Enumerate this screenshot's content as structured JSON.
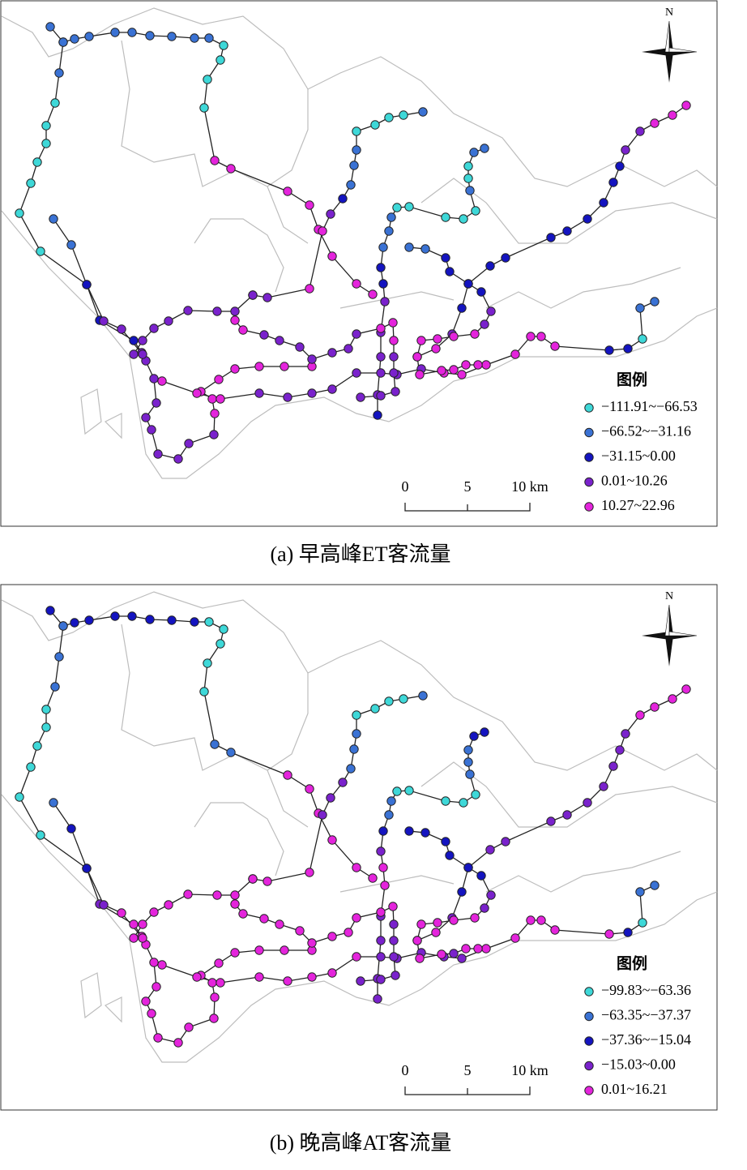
{
  "maps": [
    {
      "caption": "(a) 早高峰ET客流量",
      "north": "N",
      "scale": [
        "0",
        "5",
        "10 km"
      ],
      "legend": {
        "title": "图例",
        "classes": [
          {
            "label": "−111.91~−66.53",
            "color": "#3ed8d8"
          },
          {
            "label": "−66.52~−31.16",
            "color": "#3a72d4"
          },
          {
            "label": "−31.15~0.00",
            "color": "#1414c0"
          },
          {
            "label": "0.01~10.26",
            "color": "#7a22cc"
          },
          {
            "label": "10.27~22.96",
            "color": "#e424dc"
          }
        ]
      }
    },
    {
      "caption": "(b) 晚高峰AT客流量",
      "north": "N",
      "scale": [
        "0",
        "5",
        "10 km"
      ],
      "legend": {
        "title": "图例",
        "classes": [
          {
            "label": "−99.83~−63.36",
            "color": "#3ed8d8"
          },
          {
            "label": "−63.35~−37.37",
            "color": "#3a72d4"
          },
          {
            "label": "−37.36~−15.04",
            "color": "#1414c0"
          },
          {
            "label": "−15.03~0.00",
            "color": "#7a22cc"
          },
          {
            "label": "0.01~16.21",
            "color": "#e424dc"
          }
        ]
      }
    }
  ]
}
